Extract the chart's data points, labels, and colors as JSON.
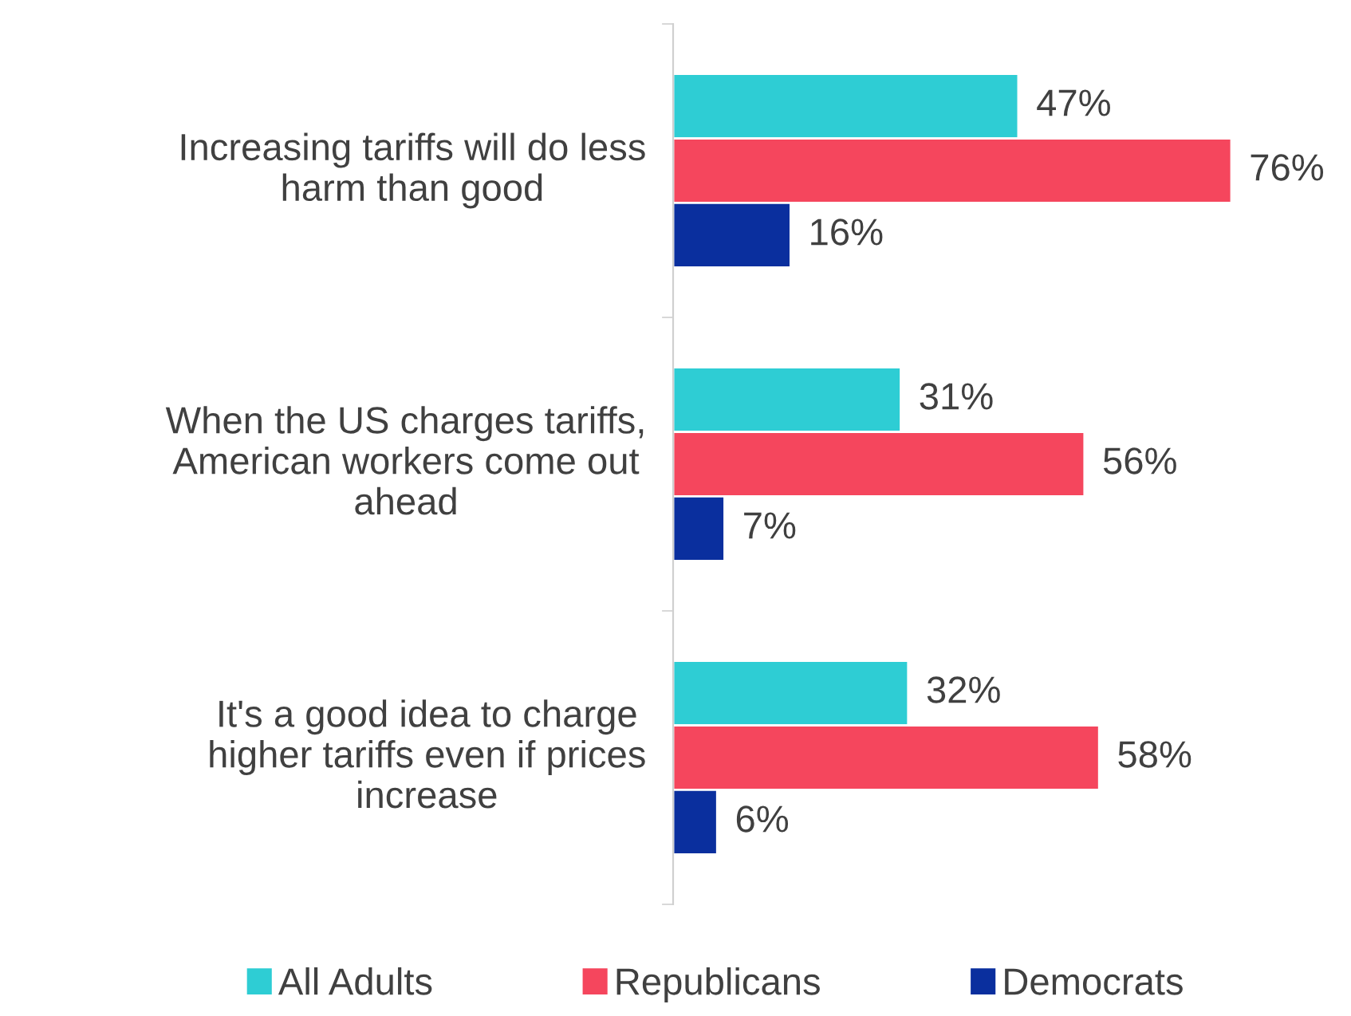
{
  "chart_data": {
    "type": "bar",
    "orientation": "horizontal",
    "categories": [
      "Increasing tariffs will do less\nharm than good",
      "When the US charges tariffs,\nAmerican workers come out\nahead",
      "It's a good idea to charge\nhigher tariffs even if prices\nincrease"
    ],
    "series": [
      {
        "name": "All Adults",
        "color": "#2ecdd4",
        "values": [
          47,
          31,
          32
        ],
        "value_labels": [
          "47%",
          "31%",
          "32%"
        ]
      },
      {
        "name": "Republicans",
        "color": "#f5465d",
        "values": [
          76,
          56,
          58
        ],
        "value_labels": [
          "76%",
          "56%",
          "58%"
        ]
      },
      {
        "name": "Democrats",
        "color": "#0a2f9e",
        "values": [
          16,
          7,
          6
        ],
        "value_labels": [
          "16%",
          "7%",
          "6%"
        ]
      }
    ],
    "legend": "bottom",
    "grid": false
  }
}
